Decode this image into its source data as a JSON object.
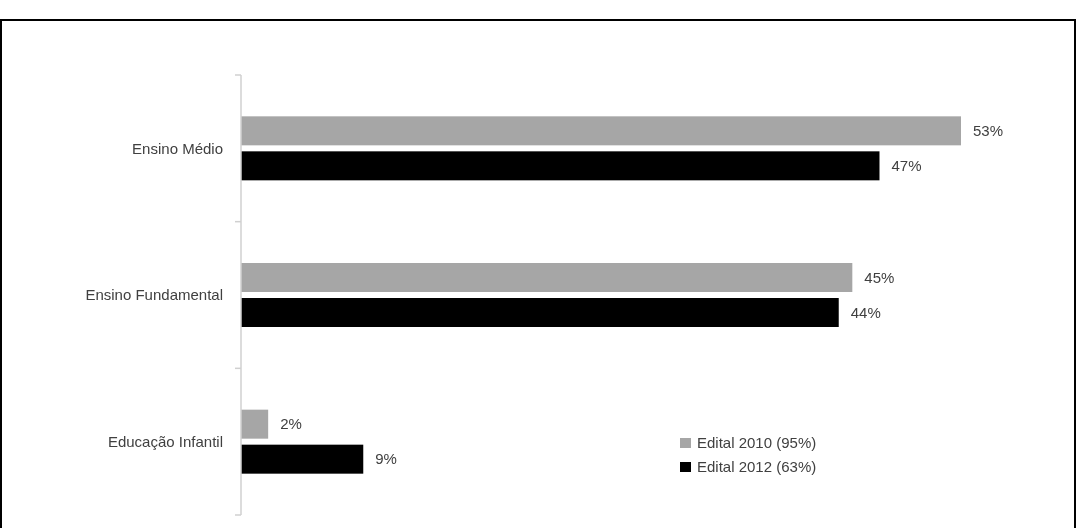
{
  "chart_data": {
    "type": "bar",
    "orientation": "horizontal",
    "categories": [
      "Ensino Médio",
      "Ensino Fundamental",
      "Educação Infantil"
    ],
    "series": [
      {
        "name": "Edital 2010 (95%)",
        "color": "#a6a6a6",
        "values": [
          53,
          45,
          2
        ],
        "value_labels": [
          "53%",
          "45%",
          "2%"
        ]
      },
      {
        "name": "Edital 2012 (63%)",
        "color": "#000000",
        "values": [
          47,
          44,
          9
        ],
        "value_labels": [
          "47%",
          "44%",
          "9%"
        ]
      }
    ],
    "legend": "bottom right"
  }
}
